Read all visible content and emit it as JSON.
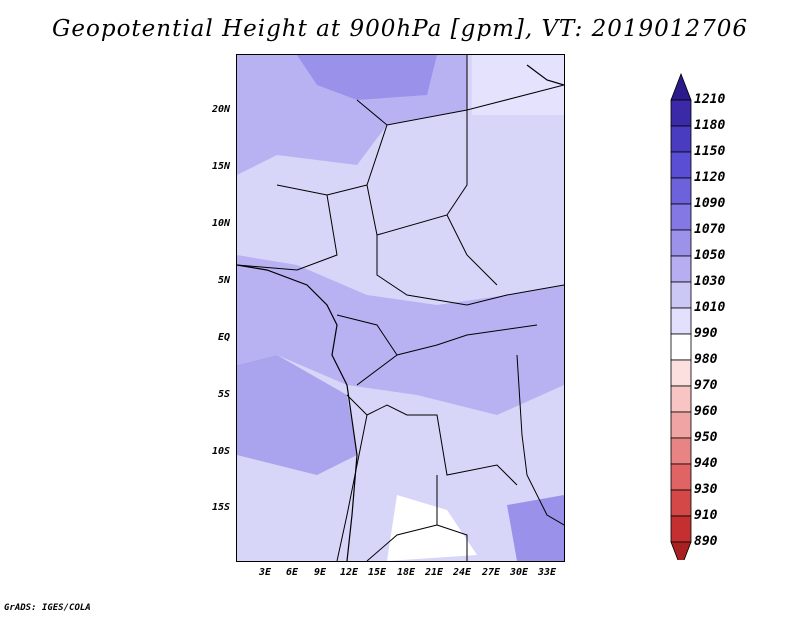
{
  "title": "Geopotential Height at 900hPa [gpm], VT: 2019012706",
  "footer": "GrADS: IGES/COLA",
  "map": {
    "lat_labels": [
      "20N",
      "15N",
      "10N",
      "5N",
      "EQ",
      "5S",
      "10S",
      "15S"
    ],
    "lon_labels": [
      "3E",
      "6E",
      "9E",
      "12E",
      "15E",
      "18E",
      "21E",
      "24E",
      "27E",
      "30E",
      "33E"
    ]
  },
  "colorbar": {
    "levels": [
      "1210",
      "1180",
      "1150",
      "1120",
      "1090",
      "1070",
      "1050",
      "1030",
      "1010",
      "990",
      "980",
      "970",
      "960",
      "950",
      "940",
      "930",
      "910",
      "890"
    ],
    "colors": [
      "#2a1a8c",
      "#3a2aa8",
      "#4a3cc0",
      "#5a4ed4",
      "#6e62dc",
      "#8478e4",
      "#9c92ea",
      "#b6aef0",
      "#ccc8f6",
      "#e2e0fc",
      "#ffffff",
      "#fce0e0",
      "#f8c4c4",
      "#f0a4a4",
      "#e88484",
      "#e06464",
      "#d44848",
      "#c43030",
      "#a82020"
    ]
  }
}
